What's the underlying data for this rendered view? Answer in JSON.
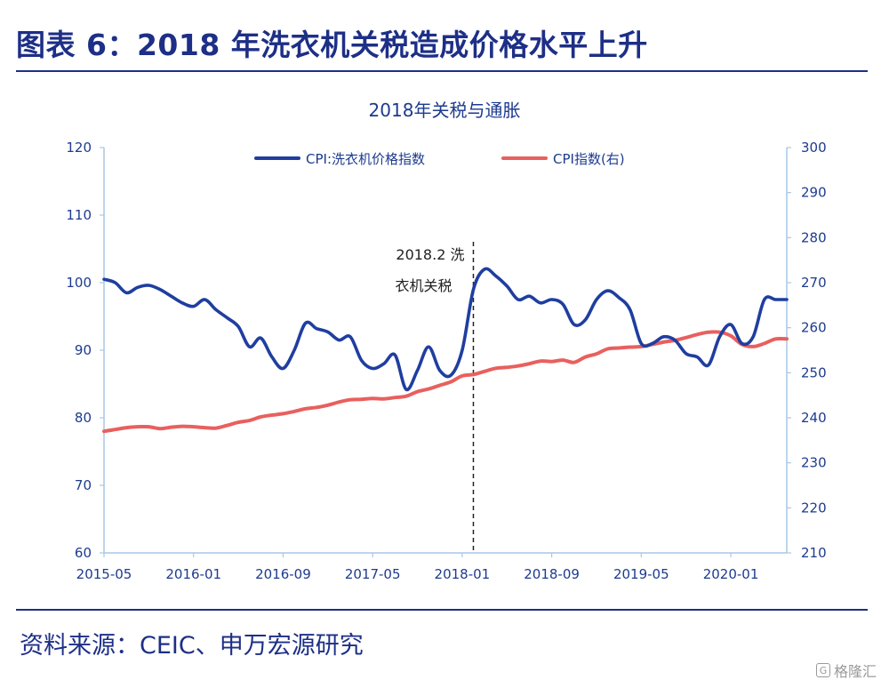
{
  "header": {
    "figure_title": "图表 6：2018 年洗衣机关税造成价格水平上升",
    "source": "资料来源：CEIC、申万宏源研究",
    "watermark": "格隆汇",
    "watermark_icon": "G"
  },
  "colors": {
    "navy": "#1d2f86",
    "series1": "#1f3ea0",
    "series2": "#e8605e",
    "axis": "#a9c7e6"
  },
  "chart_data": {
    "type": "line",
    "title": "2018年关税与通胀",
    "x": [
      "2015-05",
      "2015-06",
      "2015-07",
      "2015-08",
      "2015-09",
      "2015-10",
      "2015-11",
      "2015-12",
      "2016-01",
      "2016-02",
      "2016-03",
      "2016-04",
      "2016-05",
      "2016-06",
      "2016-07",
      "2016-08",
      "2016-09",
      "2016-10",
      "2016-11",
      "2016-12",
      "2017-01",
      "2017-02",
      "2017-03",
      "2017-04",
      "2017-05",
      "2017-06",
      "2017-07",
      "2017-08",
      "2017-09",
      "2017-10",
      "2017-11",
      "2017-12",
      "2018-01",
      "2018-02",
      "2018-03",
      "2018-04",
      "2018-05",
      "2018-06",
      "2018-07",
      "2018-08",
      "2018-09",
      "2018-10",
      "2018-11",
      "2018-12",
      "2019-01",
      "2019-02",
      "2019-03",
      "2019-04",
      "2019-05",
      "2019-06",
      "2019-07",
      "2019-08",
      "2019-09",
      "2019-10",
      "2019-11",
      "2019-12",
      "2020-01",
      "2020-02",
      "2020-03",
      "2020-04",
      "2020-05",
      "2020-06"
    ],
    "x_ticks": [
      "2015-05",
      "2016-01",
      "2016-09",
      "2017-05",
      "2018-01",
      "2018-09",
      "2019-05",
      "2020-01"
    ],
    "y_left": {
      "min": 60,
      "max": 120,
      "ticks": [
        60,
        70,
        80,
        90,
        100,
        110,
        120
      ]
    },
    "y_right": {
      "min": 210,
      "max": 300,
      "ticks": [
        210,
        220,
        230,
        240,
        250,
        260,
        270,
        280,
        290,
        300
      ]
    },
    "series": [
      {
        "name": "CPI:洗衣机价格指数",
        "axis": "left",
        "color": "#1f3ea0",
        "values": [
          100.5,
          100.0,
          98.5,
          99.3,
          99.6,
          99.0,
          98.0,
          97.0,
          96.5,
          97.5,
          96.0,
          94.8,
          93.5,
          90.5,
          91.8,
          89.0,
          87.3,
          90.0,
          94.0,
          93.2,
          92.7,
          91.5,
          92.0,
          88.5,
          87.3,
          88.0,
          89.3,
          84.2,
          87.0,
          90.5,
          87.0,
          86.3,
          90.0,
          99.0,
          102.0,
          101.0,
          99.5,
          97.5,
          98.0,
          97.0,
          97.5,
          96.8,
          93.8,
          94.5,
          97.5,
          98.8,
          97.8,
          96.0,
          91.0,
          91.0,
          92.0,
          91.5,
          89.5,
          89.0,
          87.8,
          92.0,
          93.8,
          91.0,
          92.0,
          97.5,
          97.5,
          97.5
        ]
      },
      {
        "name": "CPI指数(右)",
        "axis": "right",
        "color": "#e8605e",
        "values": [
          237.0,
          237.4,
          237.8,
          238.0,
          238.0,
          237.6,
          237.9,
          238.1,
          238.0,
          237.8,
          237.7,
          238.3,
          239.0,
          239.4,
          240.2,
          240.6,
          240.9,
          241.4,
          242.0,
          242.3,
          242.8,
          243.5,
          244.0,
          244.1,
          244.3,
          244.2,
          244.5,
          244.8,
          245.8,
          246.4,
          247.2,
          248.0,
          249.3,
          249.6,
          250.3,
          251.0,
          251.2,
          251.5,
          252.0,
          252.6,
          252.5,
          252.8,
          252.3,
          253.5,
          254.2,
          255.3,
          255.5,
          255.7,
          255.8,
          256.3,
          256.8,
          257.2,
          257.8,
          258.5,
          259.0,
          259.0,
          258.2,
          256.3,
          255.8,
          256.5,
          257.5,
          257.5
        ]
      }
    ],
    "annotation": {
      "x": "2018-02",
      "label_line1": "2018.2 洗",
      "label_line2": "衣机关税"
    },
    "legend_position": "top-center",
    "grid": false
  }
}
